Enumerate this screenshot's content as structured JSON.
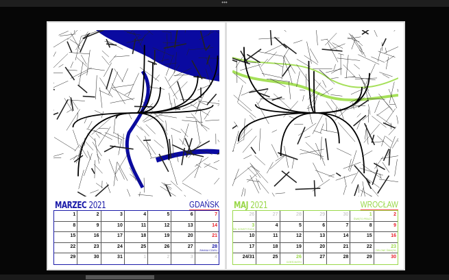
{
  "topbar": {
    "handle": "•••"
  },
  "pages": [
    {
      "month": "MARZEC",
      "year": "2021",
      "city": "GDAŃSK",
      "accent": "#1a1aa8",
      "roads": "#111",
      "water": "#0a0aa0",
      "cells": [
        [
          "1",
          ""
        ],
        [
          "2",
          ""
        ],
        [
          "3",
          ""
        ],
        [
          "4",
          ""
        ],
        [
          "5",
          ""
        ],
        [
          "6",
          ""
        ],
        [
          "7",
          "",
          "sun"
        ],
        [
          "8",
          ""
        ],
        [
          "9",
          ""
        ],
        [
          "10",
          ""
        ],
        [
          "11",
          ""
        ],
        [
          "12",
          ""
        ],
        [
          "13",
          ""
        ],
        [
          "14",
          "",
          "sun"
        ],
        [
          "15",
          ""
        ],
        [
          "16",
          ""
        ],
        [
          "17",
          ""
        ],
        [
          "18",
          ""
        ],
        [
          "19",
          ""
        ],
        [
          "20",
          ""
        ],
        [
          "21",
          "",
          "sun"
        ],
        [
          "22",
          ""
        ],
        [
          "23",
          ""
        ],
        [
          "24",
          ""
        ],
        [
          "25",
          ""
        ],
        [
          "26",
          ""
        ],
        [
          "27",
          ""
        ],
        [
          "28",
          "ZMIANA CZASU",
          "acc"
        ],
        [
          "29",
          ""
        ],
        [
          "30",
          ""
        ],
        [
          "31",
          ""
        ],
        [
          "1",
          "",
          "other"
        ],
        [
          "2",
          "",
          "other"
        ],
        [
          "3",
          "",
          "other"
        ],
        [
          "4",
          "",
          "other"
        ]
      ]
    },
    {
      "month": "MAJ",
      "year": "2021",
      "city": "WROCŁAW",
      "accent": "#9ad84a",
      "roads": "#111",
      "water": "#a6e05a",
      "cells": [
        [
          "26",
          "",
          "other"
        ],
        [
          "27",
          "",
          "other"
        ],
        [
          "28",
          "",
          "other"
        ],
        [
          "29",
          "",
          "other"
        ],
        [
          "30",
          "",
          "other"
        ],
        [
          "1",
          "ŚWIĘTO PRACY",
          "acc"
        ],
        [
          "2",
          "",
          "sun"
        ],
        [
          "3",
          "ŚW. KONSTYTUCJI",
          "acc"
        ],
        [
          "4",
          ""
        ],
        [
          "5",
          ""
        ],
        [
          "6",
          ""
        ],
        [
          "7",
          ""
        ],
        [
          "8",
          ""
        ],
        [
          "9",
          "",
          "sun"
        ],
        [
          "10",
          ""
        ],
        [
          "11",
          ""
        ],
        [
          "12",
          ""
        ],
        [
          "13",
          ""
        ],
        [
          "14",
          ""
        ],
        [
          "15",
          ""
        ],
        [
          "16",
          "",
          "sun"
        ],
        [
          "17",
          ""
        ],
        [
          "18",
          ""
        ],
        [
          "19",
          ""
        ],
        [
          "20",
          ""
        ],
        [
          "21",
          ""
        ],
        [
          "22",
          ""
        ],
        [
          "23",
          "ZIELONE ŚWIĄTKI",
          "acc"
        ],
        [
          "24/31",
          ""
        ],
        [
          "25",
          ""
        ],
        [
          "26",
          "DZIEŃ MATKI",
          "acc"
        ],
        [
          "27",
          ""
        ],
        [
          "28",
          ""
        ],
        [
          "29",
          ""
        ],
        [
          "30",
          "",
          "sun"
        ]
      ]
    }
  ]
}
